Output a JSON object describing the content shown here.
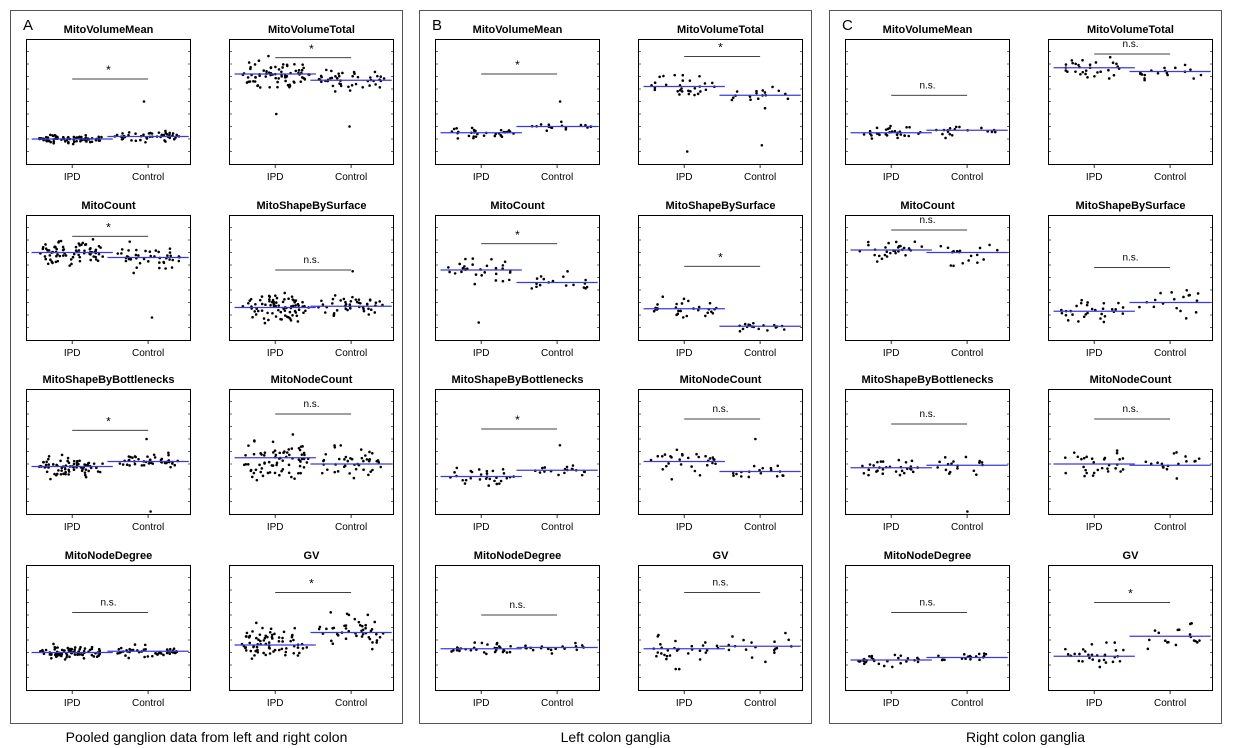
{
  "panels": [
    {
      "letter": "A",
      "caption": "Pooled ganglion data from left and right colon",
      "plots": [
        {
          "title": "MitoVolumeMean",
          "sig": "*",
          "means": [
            0.2,
            0.22
          ],
          "sig_level": 0.68,
          "spread": [
            0.04,
            0.05
          ],
          "outliers": [
            [],
            [
              0.5
            ]
          ],
          "n": [
            80,
            45
          ]
        },
        {
          "title": "MitoVolumeTotal",
          "sig": "*",
          "means": [
            0.72,
            0.67
          ],
          "sig_level": 0.85,
          "spread": [
            0.14,
            0.14
          ],
          "outliers": [
            [
              0.4
            ],
            [
              0.3
            ]
          ],
          "n": [
            75,
            45
          ]
        },
        {
          "title": "MitoCount",
          "sig": "*",
          "means": [
            0.7,
            0.66
          ],
          "sig_level": 0.83,
          "spread": [
            0.13,
            0.14
          ],
          "outliers": [
            [],
            [
              0.18
            ]
          ],
          "n": [
            75,
            45
          ]
        },
        {
          "title": "MitoShapeBySurface",
          "sig": "n.s.",
          "means": [
            0.26,
            0.27
          ],
          "sig_level": 0.56,
          "spread": [
            0.14,
            0.12
          ],
          "outliers": [
            [],
            [
              0.55
            ]
          ],
          "n": [
            80,
            45
          ]
        },
        {
          "title": "MitoShapeByBottlenecks",
          "sig": "*",
          "means": [
            0.38,
            0.42
          ],
          "sig_level": 0.67,
          "spread": [
            0.1,
            0.07
          ],
          "outliers": [
            [],
            [
              0.02,
              0.6
            ]
          ],
          "n": [
            75,
            45
          ]
        },
        {
          "title": "MitoNodeCount",
          "sig": "n.s.",
          "means": [
            0.45,
            0.4
          ],
          "sig_level": 0.8,
          "spread": [
            0.2,
            0.17
          ],
          "outliers": [
            [],
            []
          ],
          "n": [
            75,
            45
          ]
        },
        {
          "title": "MitoNodeDegree",
          "sig": "n.s.",
          "means": [
            0.3,
            0.31
          ],
          "sig_level": 0.62,
          "spread": [
            0.07,
            0.06
          ],
          "outliers": [
            [],
            []
          ],
          "n": [
            80,
            45
          ]
        },
        {
          "title": "GV",
          "sig": "*",
          "means": [
            0.36,
            0.46
          ],
          "sig_level": 0.78,
          "spread": [
            0.2,
            0.2
          ],
          "outliers": [
            [],
            []
          ],
          "n": [
            75,
            45
          ]
        }
      ]
    },
    {
      "letter": "B",
      "caption": "Left colon ganglia",
      "plots": [
        {
          "title": "MitoVolumeMean",
          "sig": "*",
          "means": [
            0.25,
            0.3
          ],
          "sig_level": 0.72,
          "spread": [
            0.06,
            0.05
          ],
          "outliers": [
            [],
            [
              0.5
            ]
          ],
          "n": [
            30,
            18
          ]
        },
        {
          "title": "MitoVolumeTotal",
          "sig": "*",
          "means": [
            0.62,
            0.55
          ],
          "sig_level": 0.86,
          "spread": [
            0.15,
            0.13
          ],
          "outliers": [
            [
              0.1
            ],
            [
              0.15
            ]
          ],
          "n": [
            30,
            18
          ]
        },
        {
          "title": "MitoCount",
          "sig": "*",
          "means": [
            0.56,
            0.46
          ],
          "sig_level": 0.77,
          "spread": [
            0.17,
            0.13
          ],
          "outliers": [
            [
              0.14
            ],
            []
          ],
          "n": [
            30,
            18
          ]
        },
        {
          "title": "MitoShapeBySurface",
          "sig": "*",
          "means": [
            0.25,
            0.11
          ],
          "sig_level": 0.59,
          "spread": [
            0.14,
            0.04
          ],
          "outliers": [
            [],
            []
          ],
          "n": [
            30,
            18
          ]
        },
        {
          "title": "MitoShapeByBottlenecks",
          "sig": "*",
          "means": [
            0.3,
            0.35
          ],
          "sig_level": 0.68,
          "spread": [
            0.1,
            0.06
          ],
          "outliers": [
            [],
            [
              0.55
            ]
          ],
          "n": [
            30,
            18
          ]
        },
        {
          "title": "MitoNodeCount",
          "sig": "n.s.",
          "means": [
            0.42,
            0.34
          ],
          "sig_level": 0.76,
          "spread": [
            0.16,
            0.1
          ],
          "outliers": [
            [],
            [
              0.6
            ]
          ],
          "n": [
            30,
            18
          ]
        },
        {
          "title": "MitoNodeDegree",
          "sig": "n.s.",
          "means": [
            0.33,
            0.34
          ],
          "sig_level": 0.6,
          "spread": [
            0.07,
            0.06
          ],
          "outliers": [
            [],
            []
          ],
          "n": [
            30,
            18
          ]
        },
        {
          "title": "GV",
          "sig": "n.s.",
          "means": [
            0.33,
            0.35
          ],
          "sig_level": 0.78,
          "spread": [
            0.18,
            0.18
          ],
          "outliers": [
            [],
            []
          ],
          "n": [
            30,
            18
          ]
        }
      ]
    },
    {
      "letter": "C",
      "caption": "Right colon ganglia",
      "plots": [
        {
          "title": "MitoVolumeMean",
          "sig": "n.s.",
          "means": [
            0.25,
            0.27
          ],
          "sig_level": 0.55,
          "spread": [
            0.07,
            0.08
          ],
          "outliers": [
            [],
            []
          ],
          "n": [
            30,
            18
          ]
        },
        {
          "title": "MitoVolumeTotal",
          "sig": "n.s.",
          "means": [
            0.77,
            0.74
          ],
          "sig_level": 0.88,
          "spread": [
            0.11,
            0.1
          ],
          "outliers": [
            [],
            []
          ],
          "n": [
            30,
            18
          ]
        },
        {
          "title": "MitoCount",
          "sig": "n.s.",
          "means": [
            0.72,
            0.7
          ],
          "sig_level": 0.88,
          "spread": [
            0.1,
            0.11
          ],
          "outliers": [
            [],
            []
          ],
          "n": [
            30,
            18
          ]
        },
        {
          "title": "MitoShapeBySurface",
          "sig": "n.s.",
          "means": [
            0.23,
            0.3
          ],
          "sig_level": 0.58,
          "spread": [
            0.12,
            0.15
          ],
          "outliers": [
            [],
            []
          ],
          "n": [
            30,
            18
          ]
        },
        {
          "title": "MitoShapeByBottlenecks",
          "sig": "n.s.",
          "means": [
            0.37,
            0.39
          ],
          "sig_level": 0.72,
          "spread": [
            0.08,
            0.1
          ],
          "outliers": [
            [],
            [
              0.02
            ]
          ],
          "n": [
            30,
            18
          ]
        },
        {
          "title": "MitoNodeCount",
          "sig": "n.s.",
          "means": [
            0.4,
            0.39
          ],
          "sig_level": 0.76,
          "spread": [
            0.15,
            0.12
          ],
          "outliers": [
            [],
            []
          ],
          "n": [
            30,
            18
          ]
        },
        {
          "title": "MitoNodeDegree",
          "sig": "n.s.",
          "means": [
            0.24,
            0.26
          ],
          "sig_level": 0.62,
          "spread": [
            0.07,
            0.05
          ],
          "outliers": [
            [],
            []
          ],
          "n": [
            30,
            18
          ]
        },
        {
          "title": "GV",
          "sig": "*",
          "means": [
            0.27,
            0.43
          ],
          "sig_level": 0.7,
          "spread": [
            0.16,
            0.12
          ],
          "outliers": [
            [],
            []
          ],
          "n": [
            30,
            18
          ]
        }
      ]
    }
  ],
  "groups": [
    "IPD",
    "Control"
  ],
  "colors": {
    "mean_line": "#3b3bdc",
    "dots": "#000000",
    "axis": "#000000",
    "frame": "#555555"
  },
  "chart_data": {
    "type": "scatter",
    "description_source": "dot-plot panels; values normalized 0-1 on unlabeled y-axes",
    "categories": [
      "IPD",
      "Control"
    ]
  }
}
